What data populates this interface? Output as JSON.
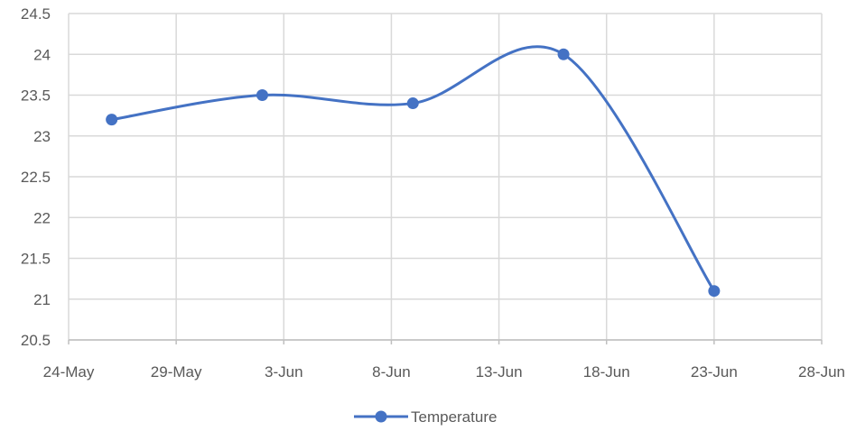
{
  "chart_data": {
    "type": "line",
    "title": "",
    "xlabel": "",
    "ylabel": "",
    "x_ticks": [
      "24-May",
      "29-May",
      "3-Jun",
      "8-Jun",
      "13-Jun",
      "18-Jun",
      "23-Jun",
      "28-Jun"
    ],
    "y_ticks": [
      "20.5",
      "21",
      "21.5",
      "22",
      "22.5",
      "23",
      "23.5",
      "24",
      "24.5"
    ],
    "x_range": [
      "24-May",
      "28-Jun"
    ],
    "ylim": [
      20.5,
      24.5
    ],
    "grid": true,
    "smooth": true,
    "legend_position": "bottom",
    "series": [
      {
        "name": "Temperature",
        "color": "#4472c4",
        "marker": "circle",
        "points": [
          {
            "x": "26-May",
            "y": 23.2
          },
          {
            "x": "2-Jun",
            "y": 23.5
          },
          {
            "x": "9-Jun",
            "y": 23.4
          },
          {
            "x": "16-Jun",
            "y": 24.0
          },
          {
            "x": "23-Jun",
            "y": 21.1
          }
        ]
      }
    ]
  }
}
